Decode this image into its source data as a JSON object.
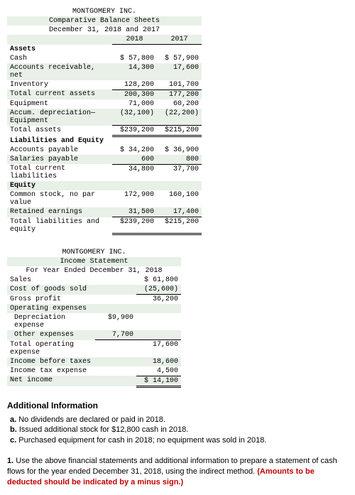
{
  "balance_sheet": {
    "company": "MONTGOMERY INC.",
    "title": "Comparative Balance Sheets",
    "date_line": "December 31, 2018 and 2017",
    "years": [
      "2018",
      "2017"
    ],
    "sections": [
      {
        "type": "header",
        "label": "Assets"
      },
      {
        "label": "Cash",
        "v": [
          "$ 57,800",
          "$ 57,900"
        ]
      },
      {
        "label": "Accounts receivable, net",
        "v": [
          "14,300",
          "17,600"
        ],
        "alt": true
      },
      {
        "label": "Inventory",
        "v": [
          "128,200",
          "101,700"
        ],
        "u": true
      },
      {
        "label": "Total current assets",
        "v": [
          "200,300",
          "177,200"
        ],
        "alt": true
      },
      {
        "label": "Equipment",
        "v": [
          "71,000",
          "60,200"
        ]
      },
      {
        "label": "Accum. depreciation—Equipment",
        "v": [
          "(32,100)",
          "(22,200)"
        ],
        "alt": true,
        "u": true
      },
      {
        "label": "Total assets",
        "v": [
          "$239,200",
          "$215,200"
        ],
        "d": true
      },
      {
        "type": "header",
        "label": "Liabilities and Equity"
      },
      {
        "label": "Accounts payable",
        "v": [
          "$ 34,200",
          "$ 36,900"
        ]
      },
      {
        "label": "Salaries payable",
        "v": [
          "600",
          "800"
        ],
        "alt": true,
        "u": true
      },
      {
        "label": "Total current liabilities",
        "v": [
          "34,800",
          "37,700"
        ]
      },
      {
        "type": "header",
        "label": "Equity",
        "alt": true
      },
      {
        "label": "Common stock, no par value",
        "v": [
          "172,900",
          "160,100"
        ]
      },
      {
        "label": "Retained earnings",
        "v": [
          "31,500",
          "17,400"
        ],
        "alt": true,
        "u": true
      },
      {
        "label": "Total liabilities and equity",
        "v": [
          "$239,200",
          "$215,200"
        ],
        "d": true
      }
    ]
  },
  "income_statement": {
    "company": "MONTGOMERY INC.",
    "title": "Income Statement",
    "date_line": "For Year Ended December 31, 2018",
    "rows": [
      {
        "label": "Sales",
        "val": "$ 61,800"
      },
      {
        "label": "Cost of goods sold",
        "val": "(25,600)",
        "alt": true,
        "u": true
      },
      {
        "label": "Gross profit",
        "val": "36,200"
      },
      {
        "label": "Operating expenses",
        "alt": true
      },
      {
        "label": "Depreciation expense",
        "sub": "$9,900",
        "indent": true
      },
      {
        "label": "Other expenses",
        "sub": "7,700",
        "alt": true,
        "u_sub": true,
        "u": true,
        "indent": true
      },
      {
        "label": "Total operating expense",
        "val": "17,600"
      },
      {
        "label": "Income before taxes",
        "val": "18,600",
        "alt": true
      },
      {
        "label": "Income tax expense",
        "val": "4,500",
        "u": true
      },
      {
        "label": "Net income",
        "val": "$ 14,100",
        "alt": true,
        "d": true
      }
    ]
  },
  "additional_info": {
    "heading": "Additional Information",
    "items": [
      {
        "key": "a.",
        "text": "No dividends are declared or paid in 2018."
      },
      {
        "key": "b.",
        "text": "Issued additional stock for $12,800 cash in 2018."
      },
      {
        "key": "c.",
        "text": "Purchased equipment for cash in 2018; no equipment was sold in 2018."
      }
    ]
  },
  "question": {
    "num": "1.",
    "text": "Use the above financial statements and additional information to prepare a statement of cash flows for the year ended December 31, 2018, using the indirect method. ",
    "red": "(Amounts to be deducted should be indicated by a minus sign.)"
  }
}
